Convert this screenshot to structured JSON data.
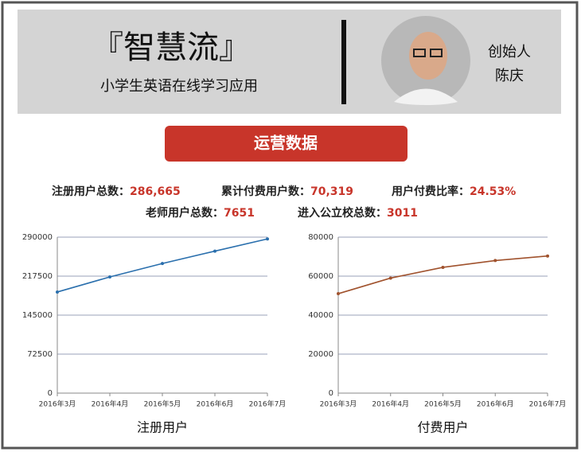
{
  "header": {
    "title": "『智慧流』",
    "subtitle": "小学生英语在线学习应用",
    "role": "创始人",
    "person": "陈庆"
  },
  "banner": "运营数据",
  "metrics": [
    {
      "label": "注册用户总数：",
      "value": "286,665"
    },
    {
      "label": "累计付费用户数：",
      "value": "70,319"
    },
    {
      "label": "用户付费比率：",
      "value": "24.53%"
    },
    {
      "label": "老师用户总数：",
      "value": "7651"
    },
    {
      "label": "进入公立校总数：",
      "value": "3011"
    }
  ],
  "chart_data": [
    {
      "type": "line",
      "x_label": "注册用户",
      "categories": [
        "2016年3月",
        "2016年4月",
        "2016年5月",
        "2016年6月",
        "2016年7月"
      ],
      "values": [
        188000,
        216000,
        241000,
        264000,
        286665
      ],
      "color": "#2a6fad",
      "ylim": [
        0,
        290000
      ],
      "yticks": [
        0,
        72500,
        145000,
        217500,
        290000
      ],
      "grid": true
    },
    {
      "type": "line",
      "x_label": "付费用户",
      "categories": [
        "2016年3月",
        "2016年4月",
        "2016年5月",
        "2016年6月",
        "2016年7月"
      ],
      "values": [
        51000,
        59000,
        64500,
        68000,
        70319
      ],
      "color": "#a0522d",
      "ylim": [
        0,
        80000
      ],
      "yticks": [
        0,
        20000,
        40000,
        60000,
        80000
      ],
      "grid": true
    }
  ]
}
